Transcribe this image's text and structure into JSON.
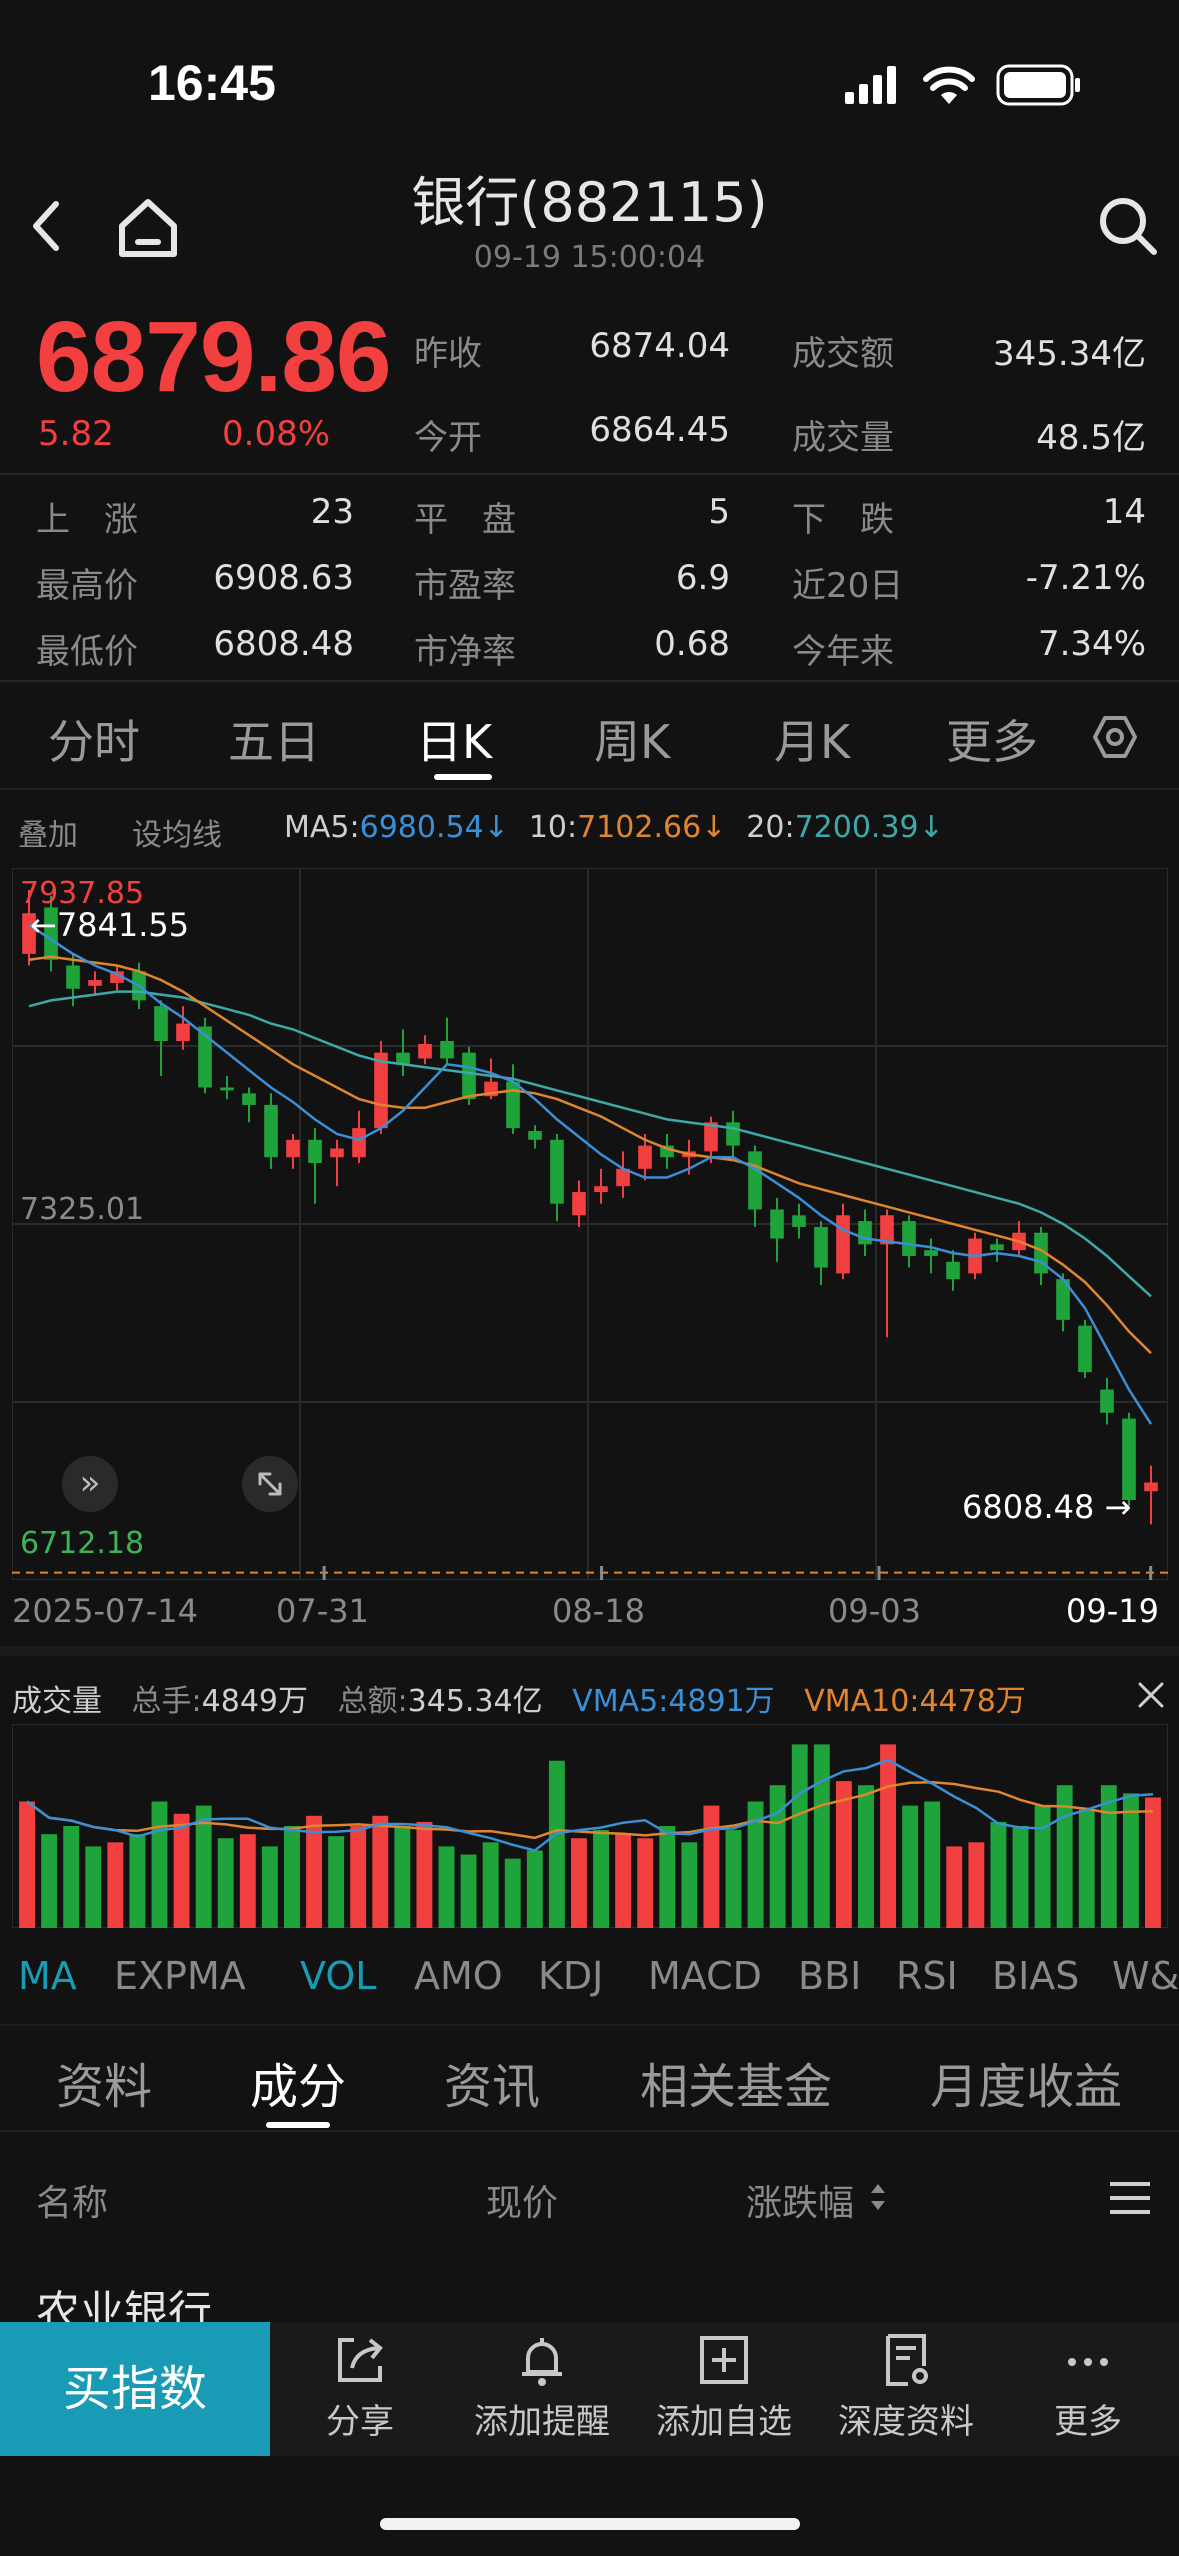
{
  "status": {
    "time": "16:45"
  },
  "header": {
    "title": "银行(882115)",
    "datetime": "09-19 15:00:04"
  },
  "quote": {
    "price": "6879.86",
    "change": "5.82",
    "change_pct": "0.08%",
    "stats_row1": [
      {
        "label": "昨收",
        "value": "6874.04"
      },
      {
        "label": "成交额",
        "value": "345.34亿"
      }
    ],
    "stats_row2": [
      {
        "label": "今开",
        "value": "6864.45"
      },
      {
        "label": "成交量",
        "value": "48.5亿"
      }
    ],
    "grid": [
      [
        {
          "label": "上　涨",
          "value": "23"
        },
        {
          "label": "平　盘",
          "value": "5"
        },
        {
          "label": "下　跌",
          "value": "14"
        }
      ],
      [
        {
          "label": "最高价",
          "value": "6908.63"
        },
        {
          "label": "市盈率",
          "value": "6.9"
        },
        {
          "label": "近20日",
          "value": "-7.21%"
        }
      ],
      [
        {
          "label": "最低价",
          "value": "6808.48"
        },
        {
          "label": "市净率",
          "value": "0.68"
        },
        {
          "label": "今年来",
          "value": "7.34%"
        }
      ]
    ]
  },
  "period_tabs": [
    "分时",
    "五日",
    "日K",
    "周K",
    "月K",
    "更多"
  ],
  "ma_bar": {
    "overlay": "叠加",
    "set_ma": "设均线",
    "ma5_label": "MA5:",
    "ma5": "6980.54↓",
    "ma10_label": "10:",
    "ma10": "7102.66↓",
    "ma20_label": "20:",
    "ma20": "7200.39↓"
  },
  "chart_labels": {
    "max": "7937.85",
    "high_marker": "←7841.55",
    "mid": "7325.01",
    "min": "6712.18",
    "low_marker": "6808.48 →"
  },
  "colors": {
    "up": "#f23f3f",
    "down": "#1fa33b",
    "ma5": "#3a8fd6",
    "ma10": "#e0852f",
    "ma20": "#3fa8a8",
    "accent": "#1a9bb5"
  },
  "chart_data": {
    "type": "candlestick",
    "ylim": [
      6712.18,
      7937.85
    ],
    "y_tick_labels": [
      "7937.85",
      "7325.01",
      "6712.18"
    ],
    "x_tick_labels": [
      "2025-07-14",
      "07-31",
      "08-18",
      "09-03",
      "09-19"
    ],
    "candles": [
      {
        "o": 7790,
        "c": 7860,
        "h": 7900,
        "l": 7770
      },
      {
        "o": 7870,
        "c": 7780,
        "h": 7890,
        "l": 7760
      },
      {
        "o": 7770,
        "c": 7730,
        "h": 7790,
        "l": 7700
      },
      {
        "o": 7735,
        "c": 7745,
        "h": 7760,
        "l": 7720
      },
      {
        "o": 7740,
        "c": 7760,
        "h": 7770,
        "l": 7725
      },
      {
        "o": 7760,
        "c": 7710,
        "h": 7775,
        "l": 7695
      },
      {
        "o": 7700,
        "c": 7640,
        "h": 7710,
        "l": 7580
      },
      {
        "o": 7640,
        "c": 7670,
        "h": 7700,
        "l": 7625
      },
      {
        "o": 7665,
        "c": 7560,
        "h": 7680,
        "l": 7550
      },
      {
        "o": 7560,
        "c": 7555,
        "h": 7580,
        "l": 7540
      },
      {
        "o": 7550,
        "c": 7530,
        "h": 7560,
        "l": 7500
      },
      {
        "o": 7530,
        "c": 7440,
        "h": 7550,
        "l": 7420
      },
      {
        "o": 7440,
        "c": 7470,
        "h": 7480,
        "l": 7420
      },
      {
        "o": 7470,
        "c": 7430,
        "h": 7490,
        "l": 7360
      },
      {
        "o": 7440,
        "c": 7455,
        "h": 7470,
        "l": 7390
      },
      {
        "o": 7440,
        "c": 7490,
        "h": 7520,
        "l": 7430
      },
      {
        "o": 7490,
        "c": 7620,
        "h": 7640,
        "l": 7480
      },
      {
        "o": 7620,
        "c": 7600,
        "h": 7660,
        "l": 7580
      },
      {
        "o": 7610,
        "c": 7635,
        "h": 7650,
        "l": 7600
      },
      {
        "o": 7640,
        "c": 7610,
        "h": 7680,
        "l": 7600
      },
      {
        "o": 7620,
        "c": 7540,
        "h": 7630,
        "l": 7530
      },
      {
        "o": 7545,
        "c": 7570,
        "h": 7610,
        "l": 7540
      },
      {
        "o": 7570,
        "c": 7490,
        "h": 7600,
        "l": 7480
      },
      {
        "o": 7485,
        "c": 7470,
        "h": 7495,
        "l": 7455
      },
      {
        "o": 7470,
        "c": 7360,
        "h": 7480,
        "l": 7330
      },
      {
        "o": 7340,
        "c": 7380,
        "h": 7400,
        "l": 7320
      },
      {
        "o": 7380,
        "c": 7390,
        "h": 7420,
        "l": 7360
      },
      {
        "o": 7390,
        "c": 7420,
        "h": 7450,
        "l": 7370
      },
      {
        "o": 7420,
        "c": 7460,
        "h": 7480,
        "l": 7400
      },
      {
        "o": 7460,
        "c": 7440,
        "h": 7480,
        "l": 7420
      },
      {
        "o": 7440,
        "c": 7450,
        "h": 7470,
        "l": 7410
      },
      {
        "o": 7450,
        "c": 7500,
        "h": 7510,
        "l": 7430
      },
      {
        "o": 7500,
        "c": 7460,
        "h": 7520,
        "l": 7440
      },
      {
        "o": 7450,
        "c": 7350,
        "h": 7460,
        "l": 7320
      },
      {
        "o": 7350,
        "c": 7300,
        "h": 7370,
        "l": 7260
      },
      {
        "o": 7340,
        "c": 7320,
        "h": 7360,
        "l": 7300
      },
      {
        "o": 7320,
        "c": 7250,
        "h": 7330,
        "l": 7220
      },
      {
        "o": 7240,
        "c": 7340,
        "h": 7360,
        "l": 7230
      },
      {
        "o": 7330,
        "c": 7290,
        "h": 7350,
        "l": 7270
      },
      {
        "o": 7290,
        "c": 7340,
        "h": 7350,
        "l": 7130
      },
      {
        "o": 7330,
        "c": 7270,
        "h": 7340,
        "l": 7250
      },
      {
        "o": 7280,
        "c": 7270,
        "h": 7300,
        "l": 7240
      },
      {
        "o": 7260,
        "c": 7230,
        "h": 7280,
        "l": 7210
      },
      {
        "o": 7240,
        "c": 7300,
        "h": 7310,
        "l": 7230
      },
      {
        "o": 7290,
        "c": 7280,
        "h": 7300,
        "l": 7260
      },
      {
        "o": 7280,
        "c": 7310,
        "h": 7330,
        "l": 7270
      },
      {
        "o": 7310,
        "c": 7240,
        "h": 7320,
        "l": 7220
      },
      {
        "o": 7230,
        "c": 7160,
        "h": 7240,
        "l": 7140
      },
      {
        "o": 7150,
        "c": 7070,
        "h": 7160,
        "l": 7060
      },
      {
        "o": 7040,
        "c": 7000,
        "h": 7060,
        "l": 6980
      },
      {
        "o": 6990,
        "c": 6850,
        "h": 7000,
        "l": 6840
      },
      {
        "o": 6865,
        "c": 6880,
        "h": 6909,
        "l": 6808
      }
    ],
    "ma5": [
      7840,
      7815,
      7790,
      7770,
      7755,
      7735,
      7705,
      7680,
      7650,
      7620,
      7590,
      7560,
      7535,
      7505,
      7480,
      7470,
      7490,
      7520,
      7560,
      7600,
      7595,
      7585,
      7570,
      7540,
      7505,
      7475,
      7445,
      7420,
      7405,
      7405,
      7420,
      7440,
      7440,
      7420,
      7395,
      7370,
      7340,
      7315,
      7300,
      7295,
      7290,
      7285,
      7275,
      7270,
      7275,
      7270,
      7260,
      7230,
      7180,
      7110,
      7040,
      6980.54
    ],
    "ma10": [
      7780,
      7785,
      7780,
      7775,
      7770,
      7760,
      7745,
      7725,
      7700,
      7675,
      7650,
      7625,
      7600,
      7580,
      7560,
      7540,
      7530,
      7525,
      7525,
      7535,
      7545,
      7550,
      7555,
      7550,
      7540,
      7525,
      7510,
      7490,
      7470,
      7455,
      7445,
      7440,
      7435,
      7425,
      7410,
      7395,
      7385,
      7375,
      7365,
      7355,
      7345,
      7335,
      7325,
      7315,
      7305,
      7295,
      7280,
      7255,
      7225,
      7185,
      7140,
      7102.66
    ],
    "ma20": [
      7700,
      7710,
      7715,
      7720,
      7725,
      7725,
      7720,
      7715,
      7705,
      7695,
      7685,
      7670,
      7660,
      7645,
      7630,
      7615,
      7605,
      7600,
      7595,
      7590,
      7585,
      7580,
      7575,
      7565,
      7555,
      7545,
      7535,
      7525,
      7515,
      7505,
      7500,
      7495,
      7490,
      7480,
      7470,
      7460,
      7450,
      7440,
      7430,
      7420,
      7410,
      7400,
      7390,
      7380,
      7370,
      7360,
      7345,
      7325,
      7300,
      7270,
      7235,
      7200.39
    ]
  },
  "volume": {
    "title": "成交量",
    "total_hands_label": "总手:",
    "total_hands": "4849万",
    "total_amount_label": "总额:",
    "total_amount": "345.34亿",
    "vma5_label": "VMA5:",
    "vma5": "4891万",
    "vma10_label": "VMA10:",
    "vma10": "4478万",
    "bars": [
      {
        "v": 0.62,
        "up": true
      },
      {
        "v": 0.46,
        "up": false
      },
      {
        "v": 0.5,
        "up": false
      },
      {
        "v": 0.4,
        "up": false
      },
      {
        "v": 0.42,
        "up": true
      },
      {
        "v": 0.46,
        "up": false
      },
      {
        "v": 0.62,
        "up": false
      },
      {
        "v": 0.56,
        "up": true
      },
      {
        "v": 0.6,
        "up": false
      },
      {
        "v": 0.44,
        "up": false
      },
      {
        "v": 0.46,
        "up": true
      },
      {
        "v": 0.4,
        "up": false
      },
      {
        "v": 0.5,
        "up": false
      },
      {
        "v": 0.55,
        "up": true
      },
      {
        "v": 0.45,
        "up": false
      },
      {
        "v": 0.5,
        "up": true
      },
      {
        "v": 0.55,
        "up": true
      },
      {
        "v": 0.5,
        "up": false
      },
      {
        "v": 0.52,
        "up": true
      },
      {
        "v": 0.4,
        "up": false
      },
      {
        "v": 0.36,
        "up": false
      },
      {
        "v": 0.42,
        "up": false
      },
      {
        "v": 0.34,
        "up": false
      },
      {
        "v": 0.38,
        "up": false
      },
      {
        "v": 0.82,
        "up": false
      },
      {
        "v": 0.44,
        "up": true
      },
      {
        "v": 0.48,
        "up": false
      },
      {
        "v": 0.46,
        "up": true
      },
      {
        "v": 0.44,
        "up": true
      },
      {
        "v": 0.5,
        "up": false
      },
      {
        "v": 0.42,
        "up": false
      },
      {
        "v": 0.6,
        "up": true
      },
      {
        "v": 0.48,
        "up": false
      },
      {
        "v": 0.62,
        "up": false
      },
      {
        "v": 0.7,
        "up": false
      },
      {
        "v": 0.9,
        "up": false
      },
      {
        "v": 0.9,
        "up": false
      },
      {
        "v": 0.72,
        "up": true
      },
      {
        "v": 0.7,
        "up": false
      },
      {
        "v": 0.9,
        "up": true
      },
      {
        "v": 0.6,
        "up": false
      },
      {
        "v": 0.62,
        "up": false
      },
      {
        "v": 0.4,
        "up": true
      },
      {
        "v": 0.42,
        "up": true
      },
      {
        "v": 0.52,
        "up": false
      },
      {
        "v": 0.5,
        "up": false
      },
      {
        "v": 0.6,
        "up": false
      },
      {
        "v": 0.7,
        "up": false
      },
      {
        "v": 0.58,
        "up": false
      },
      {
        "v": 0.7,
        "up": false
      },
      {
        "v": 0.66,
        "up": false
      },
      {
        "v": 0.64,
        "up": true
      }
    ]
  },
  "indicator_tabs": [
    "MA",
    "EXPMA",
    "VOL",
    "AMO",
    "KDJ",
    "MACD",
    "BBI",
    "RSI",
    "BIAS",
    "W&R"
  ],
  "section_tabs": [
    "资料",
    "成分",
    "资讯",
    "相关基金",
    "月度收益"
  ],
  "list": {
    "headers": {
      "name": "名称",
      "price": "现价",
      "change": "涨跌幅"
    },
    "first_row_name": "农业银行"
  },
  "bottom_bar": {
    "buy": "买指数",
    "items": [
      {
        "icon": "share-icon",
        "label": "分享"
      },
      {
        "icon": "bell-icon",
        "label": "添加提醒"
      },
      {
        "icon": "plus-square-icon",
        "label": "添加自选"
      },
      {
        "icon": "report-icon",
        "label": "深度资料"
      },
      {
        "icon": "more-icon",
        "label": "更多"
      }
    ]
  }
}
